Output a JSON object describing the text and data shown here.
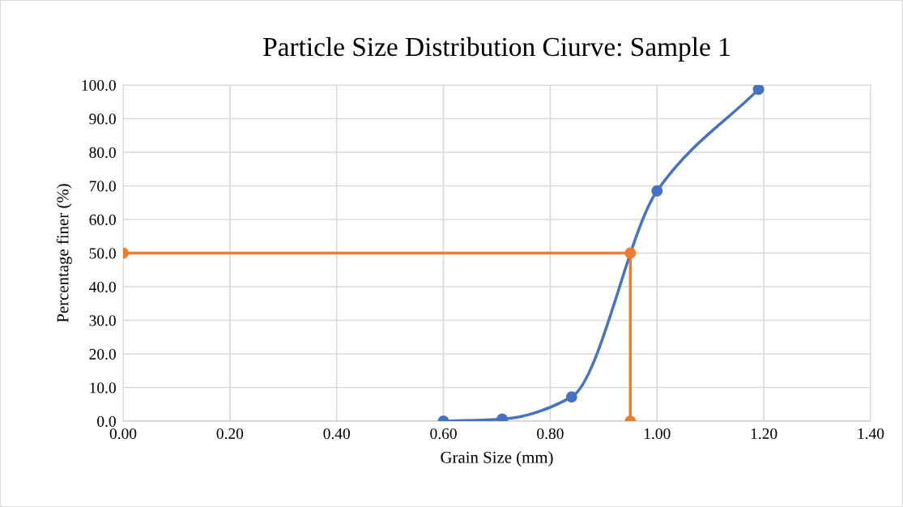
{
  "chart_data": {
    "type": "line",
    "title": "Particle Size Distribution Ciurve: Sample 1",
    "xlabel": "Grain Size (mm)",
    "ylabel": "Percentage finer (%)",
    "series": [
      {
        "x": [
          0.6,
          0.71,
          0.84,
          1.0,
          1.19
        ],
        "values": [
          0.0,
          0.6,
          7.2,
          68.5,
          98.7
        ],
        "color": "#4472c4"
      },
      {
        "x": [
          0.0,
          0.95,
          0.95
        ],
        "values": [
          50.0,
          50.0,
          0.0
        ],
        "color": "#ed7d31"
      }
    ],
    "marker": "circle",
    "line_style": "solid",
    "grid": true,
    "legend": false,
    "xlim": [
      0,
      1.4
    ],
    "xticks": [
      {
        "value": 0,
        "label": "0.00"
      },
      {
        "value": 0.2,
        "label": "0.20"
      },
      {
        "value": 0.4,
        "label": "0.40"
      },
      {
        "value": 0.6,
        "label": "0.60"
      },
      {
        "value": 0.8,
        "label": "0.80"
      },
      {
        "value": 1.0,
        "label": "1.00"
      },
      {
        "value": 1.2,
        "label": "1.20"
      },
      {
        "value": 1.4,
        "label": "1.40"
      }
    ],
    "ylim": [
      0,
      100
    ],
    "yticks": [
      {
        "value": 0,
        "label": "0.0"
      },
      {
        "value": 10,
        "label": "10.0"
      },
      {
        "value": 20,
        "label": "20.0"
      },
      {
        "value": 30,
        "label": "30.0"
      },
      {
        "value": 40,
        "label": "40.0"
      },
      {
        "value": 50,
        "label": "50.0"
      },
      {
        "value": 60,
        "label": "60.0"
      },
      {
        "value": 70,
        "label": "70.0"
      },
      {
        "value": 80,
        "label": "80.0"
      },
      {
        "value": 90,
        "label": "90.0"
      },
      {
        "value": 100,
        "label": "100.0"
      }
    ]
  }
}
